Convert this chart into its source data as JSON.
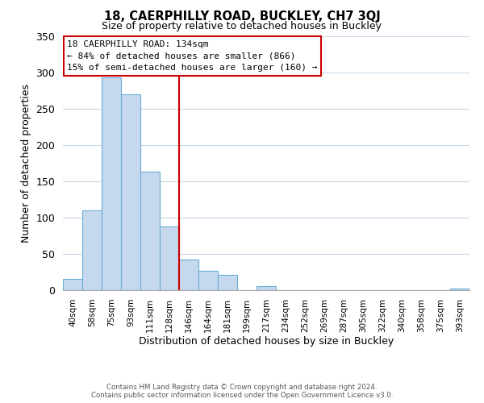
{
  "title": "18, CAERPHILLY ROAD, BUCKLEY, CH7 3QJ",
  "subtitle": "Size of property relative to detached houses in Buckley",
  "xlabel": "Distribution of detached houses by size in Buckley",
  "ylabel": "Number of detached properties",
  "bar_labels": [
    "40sqm",
    "58sqm",
    "75sqm",
    "93sqm",
    "111sqm",
    "128sqm",
    "146sqm",
    "164sqm",
    "181sqm",
    "199sqm",
    "217sqm",
    "234sqm",
    "252sqm",
    "269sqm",
    "287sqm",
    "305sqm",
    "322sqm",
    "340sqm",
    "358sqm",
    "375sqm",
    "393sqm"
  ],
  "bar_values": [
    16,
    110,
    293,
    270,
    163,
    88,
    42,
    27,
    21,
    0,
    6,
    0,
    0,
    0,
    0,
    0,
    0,
    0,
    0,
    0,
    2
  ],
  "bar_color": "#c5d8ed",
  "bar_edge_color": "#6aaed6",
  "vline_x": 5.5,
  "vline_color": "#cc0000",
  "ylim": [
    0,
    350
  ],
  "yticks": [
    0,
    50,
    100,
    150,
    200,
    250,
    300,
    350
  ],
  "annotation_title": "18 CAERPHILLY ROAD: 134sqm",
  "annotation_line1": "← 84% of detached houses are smaller (866)",
  "annotation_line2": "15% of semi-detached houses are larger (160) →",
  "annotation_box_color": "#ffffff",
  "annotation_box_edge": "#cc0000",
  "footer_line1": "Contains HM Land Registry data © Crown copyright and database right 2024.",
  "footer_line2": "Contains public sector information licensed under the Open Government Licence v3.0.",
  "background_color": "#ffffff",
  "grid_color": "#c8d8e8"
}
